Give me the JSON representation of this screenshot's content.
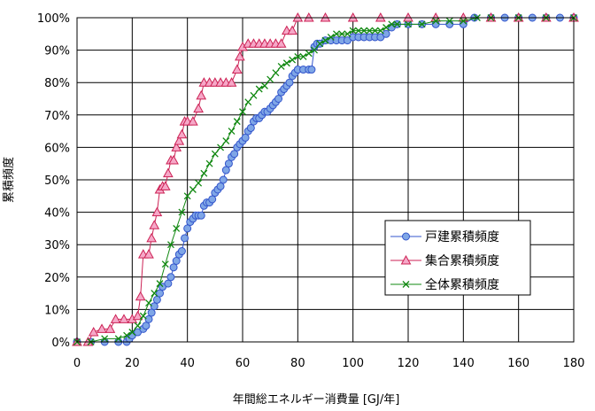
{
  "chart_data": {
    "type": "line",
    "xlabel": "年間総エネルギー消費量 [GJ/年]",
    "ylabel": "累積頻度",
    "xlim": [
      0,
      180
    ],
    "ylim": [
      0,
      100
    ],
    "x_ticks": [
      "0",
      "20",
      "40",
      "60",
      "80",
      "100",
      "120",
      "140",
      "160",
      "180"
    ],
    "y_ticks": [
      "0%",
      "10%",
      "20%",
      "30%",
      "40%",
      "50%",
      "60%",
      "70%",
      "80%",
      "90%",
      "100%"
    ],
    "grid": true,
    "legend_position": "right-middle",
    "series": [
      {
        "name": "戸建累積頻度",
        "color": "#3355cc",
        "fill": "#7fa6e6",
        "marker": "circle",
        "points": [
          [
            0,
            0
          ],
          [
            5,
            0
          ],
          [
            10,
            0
          ],
          [
            15,
            0
          ],
          [
            18,
            0
          ],
          [
            19,
            1
          ],
          [
            20,
            2
          ],
          [
            22,
            3
          ],
          [
            24,
            4
          ],
          [
            25,
            5
          ],
          [
            26,
            7
          ],
          [
            27,
            9
          ],
          [
            28,
            11
          ],
          [
            29,
            13
          ],
          [
            30,
            15
          ],
          [
            31,
            17
          ],
          [
            33,
            18
          ],
          [
            34,
            20
          ],
          [
            35,
            23
          ],
          [
            36,
            25
          ],
          [
            37,
            27
          ],
          [
            38,
            28
          ],
          [
            39,
            32
          ],
          [
            40,
            35
          ],
          [
            41,
            37
          ],
          [
            42,
            38
          ],
          [
            43,
            39
          ],
          [
            44,
            39
          ],
          [
            45,
            39
          ],
          [
            46,
            42
          ],
          [
            47,
            43
          ],
          [
            48,
            43
          ],
          [
            49,
            44
          ],
          [
            50,
            46
          ],
          [
            51,
            47
          ],
          [
            52,
            48
          ],
          [
            53,
            50
          ],
          [
            54,
            53
          ],
          [
            55,
            55
          ],
          [
            56,
            57
          ],
          [
            57,
            58
          ],
          [
            58,
            60
          ],
          [
            59,
            61
          ],
          [
            60,
            62
          ],
          [
            61,
            63
          ],
          [
            62,
            65
          ],
          [
            63,
            66
          ],
          [
            64,
            68
          ],
          [
            65,
            69
          ],
          [
            66,
            69
          ],
          [
            67,
            70
          ],
          [
            68,
            71
          ],
          [
            69,
            71
          ],
          [
            70,
            72
          ],
          [
            71,
            73
          ],
          [
            72,
            74
          ],
          [
            73,
            75
          ],
          [
            74,
            77
          ],
          [
            75,
            78
          ],
          [
            76,
            79
          ],
          [
            77,
            80
          ],
          [
            78,
            82
          ],
          [
            79,
            83
          ],
          [
            80,
            84
          ],
          [
            82,
            84
          ],
          [
            84,
            84
          ],
          [
            85,
            84
          ],
          [
            86,
            91
          ],
          [
            87,
            92
          ],
          [
            88,
            92
          ],
          [
            90,
            93
          ],
          [
            92,
            93
          ],
          [
            94,
            93
          ],
          [
            96,
            93
          ],
          [
            98,
            93
          ],
          [
            100,
            94
          ],
          [
            102,
            94
          ],
          [
            104,
            94
          ],
          [
            106,
            94
          ],
          [
            108,
            94
          ],
          [
            110,
            94
          ],
          [
            112,
            95
          ],
          [
            114,
            97
          ],
          [
            116,
            98
          ],
          [
            120,
            98
          ],
          [
            125,
            98
          ],
          [
            130,
            98
          ],
          [
            135,
            98
          ],
          [
            140,
            98
          ],
          [
            144,
            100
          ],
          [
            150,
            100
          ],
          [
            155,
            100
          ],
          [
            160,
            100
          ],
          [
            165,
            100
          ],
          [
            170,
            100
          ],
          [
            175,
            100
          ],
          [
            180,
            100
          ]
        ]
      },
      {
        "name": "集合累積頻度",
        "color": "#cc2255",
        "fill": "#f6a8c8",
        "marker": "triangle",
        "points": [
          [
            0,
            0
          ],
          [
            4,
            0
          ],
          [
            6,
            3
          ],
          [
            9,
            4
          ],
          [
            12,
            4
          ],
          [
            14,
            7
          ],
          [
            17,
            7
          ],
          [
            20,
            7
          ],
          [
            22,
            8
          ],
          [
            23,
            14
          ],
          [
            24,
            27
          ],
          [
            26,
            27
          ],
          [
            27,
            32
          ],
          [
            28,
            36
          ],
          [
            29,
            40
          ],
          [
            30,
            47
          ],
          [
            31,
            48
          ],
          [
            32,
            48
          ],
          [
            33,
            52
          ],
          [
            34,
            56
          ],
          [
            35,
            56
          ],
          [
            36,
            60
          ],
          [
            37,
            62
          ],
          [
            38,
            64
          ],
          [
            39,
            68
          ],
          [
            40,
            68
          ],
          [
            42,
            68
          ],
          [
            44,
            72
          ],
          [
            45,
            76
          ],
          [
            46,
            80
          ],
          [
            48,
            80
          ],
          [
            50,
            80
          ],
          [
            52,
            80
          ],
          [
            54,
            80
          ],
          [
            56,
            80
          ],
          [
            58,
            84
          ],
          [
            59,
            88
          ],
          [
            60,
            91
          ],
          [
            62,
            92
          ],
          [
            64,
            92
          ],
          [
            66,
            92
          ],
          [
            68,
            92
          ],
          [
            70,
            92
          ],
          [
            72,
            92
          ],
          [
            74,
            92
          ],
          [
            76,
            96
          ],
          [
            78,
            96
          ],
          [
            80,
            100
          ],
          [
            84,
            100
          ],
          [
            90,
            100
          ],
          [
            100,
            100
          ],
          [
            110,
            100
          ],
          [
            120,
            100
          ],
          [
            130,
            100
          ],
          [
            140,
            100
          ],
          [
            150,
            100
          ],
          [
            160,
            100
          ],
          [
            170,
            100
          ],
          [
            180,
            100
          ]
        ]
      },
      {
        "name": "全体累積頻度",
        "color": "#118811",
        "fill": "#118811",
        "marker": "x",
        "points": [
          [
            0,
            0
          ],
          [
            5,
            0
          ],
          [
            10,
            1
          ],
          [
            15,
            1
          ],
          [
            18,
            2
          ],
          [
            20,
            3
          ],
          [
            22,
            5
          ],
          [
            24,
            8
          ],
          [
            26,
            12
          ],
          [
            28,
            15
          ],
          [
            30,
            18
          ],
          [
            32,
            24
          ],
          [
            34,
            30
          ],
          [
            36,
            35
          ],
          [
            38,
            40
          ],
          [
            40,
            45
          ],
          [
            42,
            47
          ],
          [
            44,
            49
          ],
          [
            46,
            52
          ],
          [
            48,
            55
          ],
          [
            50,
            58
          ],
          [
            52,
            60
          ],
          [
            54,
            62
          ],
          [
            56,
            65
          ],
          [
            58,
            68
          ],
          [
            60,
            71
          ],
          [
            62,
            74
          ],
          [
            64,
            76
          ],
          [
            66,
            78
          ],
          [
            68,
            79
          ],
          [
            70,
            81
          ],
          [
            72,
            83
          ],
          [
            74,
            85
          ],
          [
            76,
            86
          ],
          [
            78,
            87
          ],
          [
            80,
            88
          ],
          [
            82,
            88
          ],
          [
            84,
            89
          ],
          [
            86,
            90
          ],
          [
            88,
            92
          ],
          [
            90,
            93
          ],
          [
            92,
            94
          ],
          [
            94,
            95
          ],
          [
            96,
            95
          ],
          [
            98,
            95
          ],
          [
            100,
            96
          ],
          [
            102,
            96
          ],
          [
            104,
            96
          ],
          [
            106,
            96
          ],
          [
            108,
            96
          ],
          [
            110,
            96
          ],
          [
            112,
            97
          ],
          [
            114,
            98
          ],
          [
            116,
            98
          ],
          [
            120,
            98
          ],
          [
            125,
            98
          ],
          [
            130,
            99
          ],
          [
            135,
            99
          ],
          [
            140,
            99
          ],
          [
            145,
            100
          ],
          [
            150,
            100
          ],
          [
            160,
            100
          ],
          [
            170,
            100
          ],
          [
            180,
            100
          ]
        ]
      }
    ]
  }
}
